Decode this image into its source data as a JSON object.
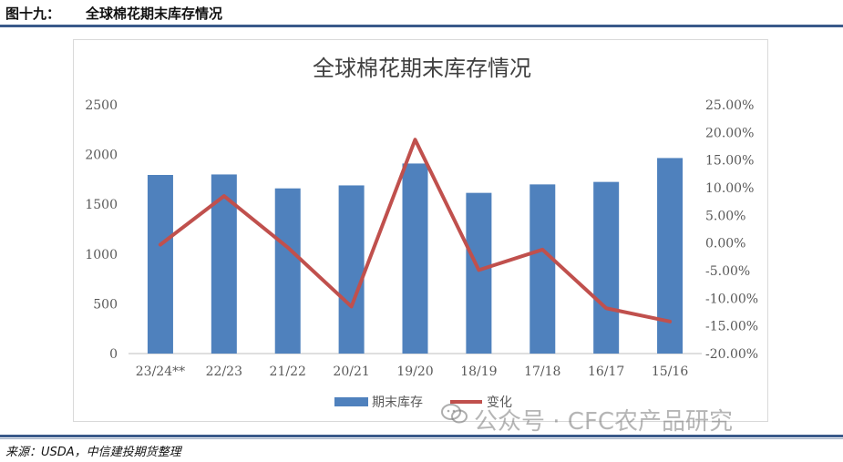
{
  "header": {
    "figure_number": "图十九：",
    "figure_title": "全球棉花期末库存情况"
  },
  "source": "来源：USDA，中信建投期货整理",
  "watermark": {
    "text": "公众号 · CFC农产品研究",
    "icon": "wechat-icon"
  },
  "colors": {
    "bar": "#4f81bd",
    "line": "#c0504d",
    "rule": "#3a5a8a"
  },
  "chart_data": {
    "type": "bar",
    "title": "全球棉花期末库存情况",
    "categories": [
      "23/24**",
      "22/23",
      "21/22",
      "20/21",
      "19/20",
      "18/19",
      "17/18",
      "16/17",
      "15/16"
    ],
    "series": [
      {
        "name": "期末库存",
        "type": "bar",
        "axis": "left",
        "values": [
          1795,
          1800,
          1660,
          1690,
          1910,
          1615,
          1700,
          1725,
          1965
        ]
      },
      {
        "name": "变化",
        "type": "line",
        "axis": "right",
        "values": [
          -0.3,
          8.5,
          -0.8,
          -11.5,
          18.7,
          -4.9,
          -1.2,
          -11.8,
          -14.2
        ]
      }
    ],
    "y_left": {
      "min": 0,
      "max": 2500,
      "ticks": [
        "0",
        "500",
        "1000",
        "1500",
        "2000",
        "2500"
      ]
    },
    "y_right": {
      "min": -20,
      "max": 25,
      "ticks": [
        "-20.00%",
        "-15.00%",
        "-10.00%",
        "-5.00%",
        "0.00%",
        "5.00%",
        "10.00%",
        "15.00%",
        "20.00%",
        "25.00%"
      ]
    },
    "grid": false,
    "legend": "bottom"
  }
}
